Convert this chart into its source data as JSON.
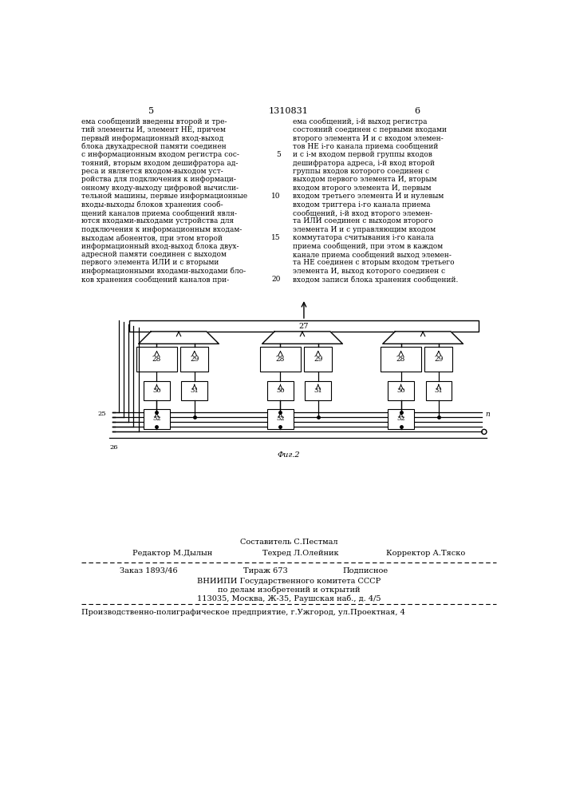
{
  "bg_color": "#ffffff",
  "page_header": {
    "left_num": "5",
    "center_num": "1310831",
    "right_num": "6"
  },
  "left_col_text": [
    "ема сообщений введены второй и тре-",
    "тий элементы И, элемент НЕ, причем",
    "первый информационный вход-выход",
    "блока двухадресной памяти соединен",
    "с информационным входом регистра сос-",
    "тояний, вторым входом дешифратора ад-",
    "реса и является входом-выходом уст-",
    "ройства для подключения к информаци-",
    "онному входу-выходу цифровой вычисли-",
    "тельной машины, первые информационные",
    "входы-выходы блоков хранения сооб-",
    "щений каналов приема сообщений явля-",
    "ются входами-выходами устройства для",
    "подключения к информационным входам-",
    "выходам абонентов, при этом второй",
    "информационный вход-выход блока двух-",
    "адресной памяти соединен с выходом",
    "первого элемента ИЛИ и с вторыми",
    "информационными входами-выходами бло-",
    "ков хранения сообщений каналов при-"
  ],
  "right_col_text": [
    "ема сообщений, i-й выход регистра",
    "состояний соединен с первыми входами",
    "второго элемента И и с входом элемен-",
    "тов НЕ i-го канала приема сообщений",
    "и с i-м входом первой группы входов",
    "дешифратора адреса, i-й вход второй",
    "группы входов которого соединен с",
    "выходом первого элемента И, вторым",
    "входом второго элемента И, первым",
    "входом третьего элемента И и нулевым",
    "входом триггера i-го канала приема",
    "сообщений, i-й вход второго элемен-",
    "та ИЛИ соединен с выходом второго",
    "элемента И и с управляющим входом",
    "коммутатора считывания i-го канала",
    "приема сообщений, при этом в каждом",
    "канале приема сообщений выход элемен-",
    "та НЕ соединен с вторым входом третьего",
    "элемента И, выход которого соединен с",
    "входом записи блока хранения сообщений."
  ],
  "fig_caption": "Фиг.2",
  "footer": {
    "composer_line": "Составитель С.Пестмал",
    "editor_left": "Редактор М.Дылын",
    "editor_mid": "Техред Л.Олейник",
    "editor_right": "Корректор А.Тяско",
    "order_left": "Заказ 1893/46",
    "order_mid": "Тираж 673",
    "order_right": "Подписное",
    "org_line1": "ВНИИПИ Государственного комитета СССР",
    "org_line2": "по делам изобретений и открытий",
    "org_line3": "113035, Москва, Ж-35, Раушская наб., д. 4/5",
    "prod_line": "Производственно-полиграфическое предприятие, г.Ужгород, ул.Проектная, 4"
  }
}
